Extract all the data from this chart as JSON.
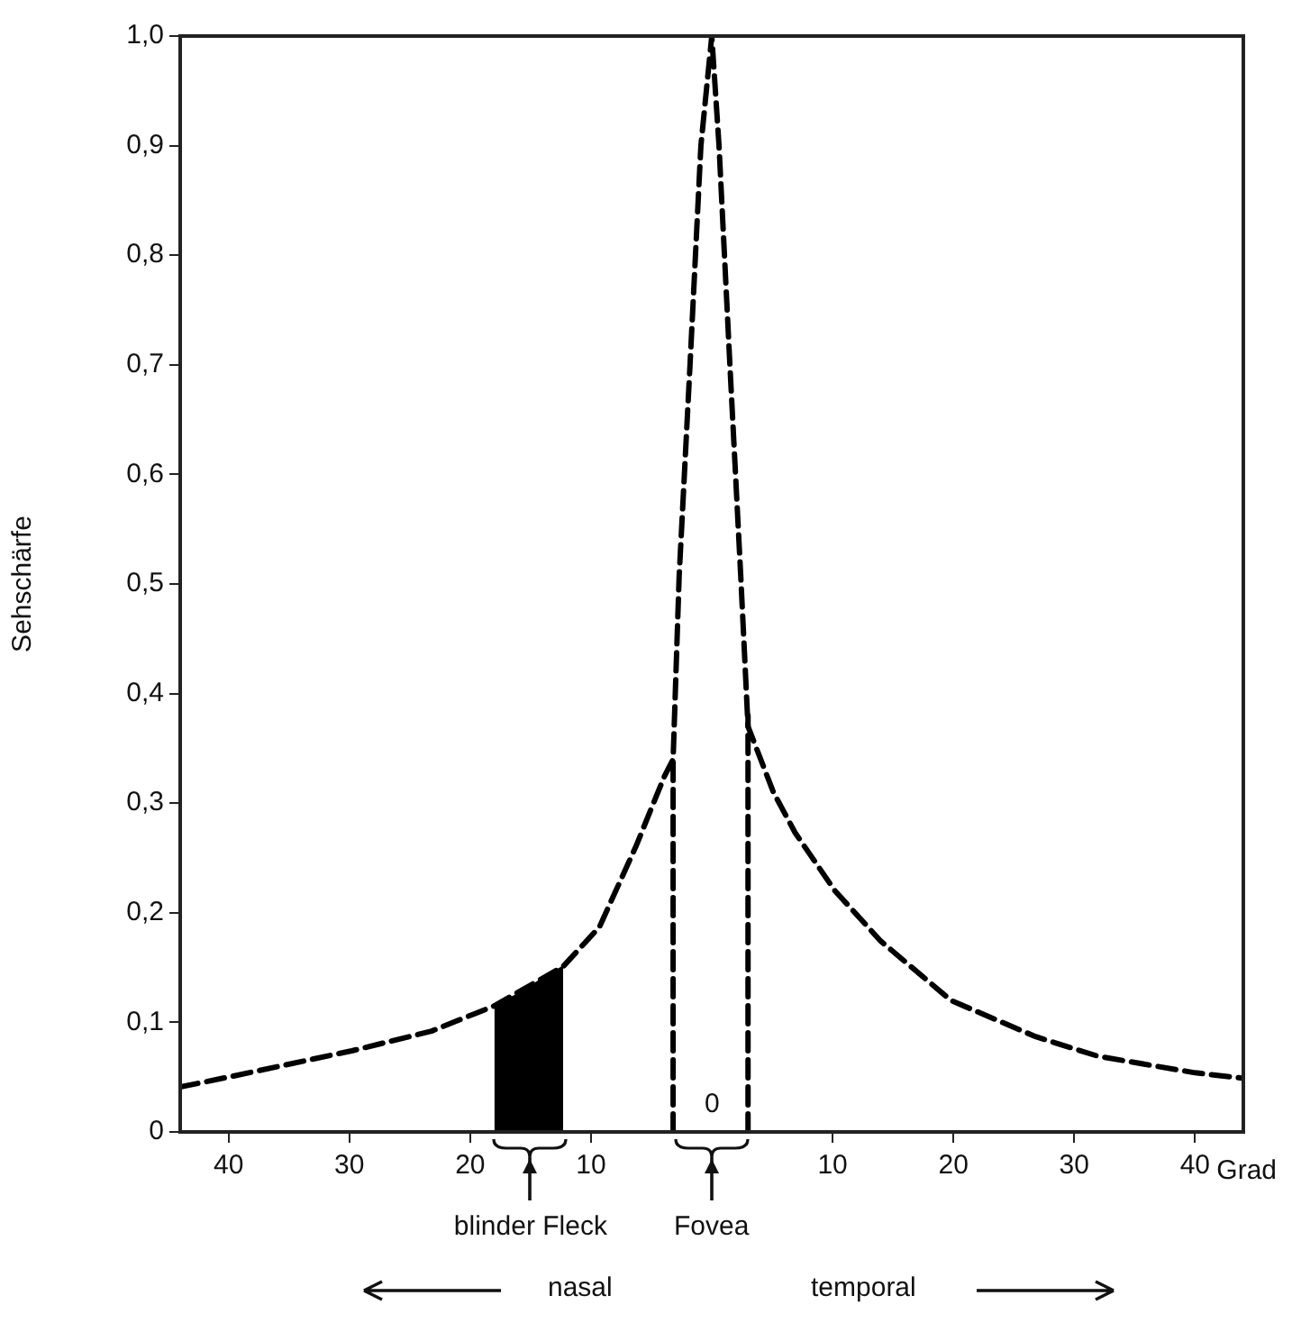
{
  "chart_data": {
    "type": "line",
    "xlabel": "Grad",
    "ylabel": "Sehschärfe",
    "xlim": [
      -44,
      44
    ],
    "ylim": [
      0,
      1
    ],
    "xticks": [
      {
        "value": -40,
        "label": "40"
      },
      {
        "value": -30,
        "label": "30"
      },
      {
        "value": -20,
        "label": "20"
      },
      {
        "value": -10,
        "label": "10"
      },
      10,
      20,
      30,
      40
    ],
    "yticks": [
      0,
      {
        "value": 0.1,
        "label": "0,1"
      },
      {
        "value": 0.2,
        "label": "0,2"
      },
      {
        "value": 0.3,
        "label": "0,3"
      },
      {
        "value": 0.4,
        "label": "0,4"
      },
      {
        "value": 0.5,
        "label": "0,5"
      },
      {
        "value": 0.6,
        "label": "0,6"
      },
      {
        "value": 0.7,
        "label": "0,7"
      },
      {
        "value": 0.8,
        "label": "0,8"
      },
      {
        "value": 0.9,
        "label": "0,9"
      },
      {
        "value": 1,
        "label": "1,0"
      }
    ],
    "grid": false,
    "legend": false,
    "series": [
      {
        "type": "area",
        "color": "#000000",
        "x": [
          -18,
          -16,
          -14,
          -12.3
        ],
        "values": [
          0.115,
          0.126,
          0.14,
          0.151
        ]
      },
      {
        "type": "line",
        "color": "#000000",
        "line_style": "dashed",
        "x": [
          -3.2,
          -3.2
        ],
        "values": [
          0,
          0.34
        ]
      },
      {
        "type": "line",
        "color": "#000000",
        "line_style": "dashed",
        "x": [
          3,
          3
        ],
        "values": [
          0,
          0.38
        ]
      },
      {
        "color": "#000000",
        "line_style": "dashed",
        "x": [
          -44,
          -39.6,
          -29.8,
          -23.2,
          -19.6,
          -18,
          -12.3,
          -9.3,
          -6.3,
          -3.9,
          -3.2,
          -2.7,
          -1.8,
          -0.9,
          0,
          0.6,
          1.5,
          2.4,
          3,
          5.1,
          6.9,
          10.2,
          14,
          19.8,
          26.8,
          32,
          40,
          44
        ],
        "values": [
          0.041,
          0.051,
          0.074,
          0.092,
          0.108,
          0.115,
          0.151,
          0.187,
          0.26,
          0.325,
          0.34,
          0.507,
          0.7,
          0.9,
          1,
          0.9,
          0.7,
          0.507,
          0.37,
          0.31,
          0.273,
          0.22,
          0.174,
          0.12,
          0.087,
          0.069,
          0.054,
          0.049
        ]
      }
    ],
    "annotations": [
      "0",
      {
        "text": "blinder Fleck",
        "x": -15,
        "y": 0
      },
      "Fovea",
      "nasal",
      "temporal"
    ]
  }
}
